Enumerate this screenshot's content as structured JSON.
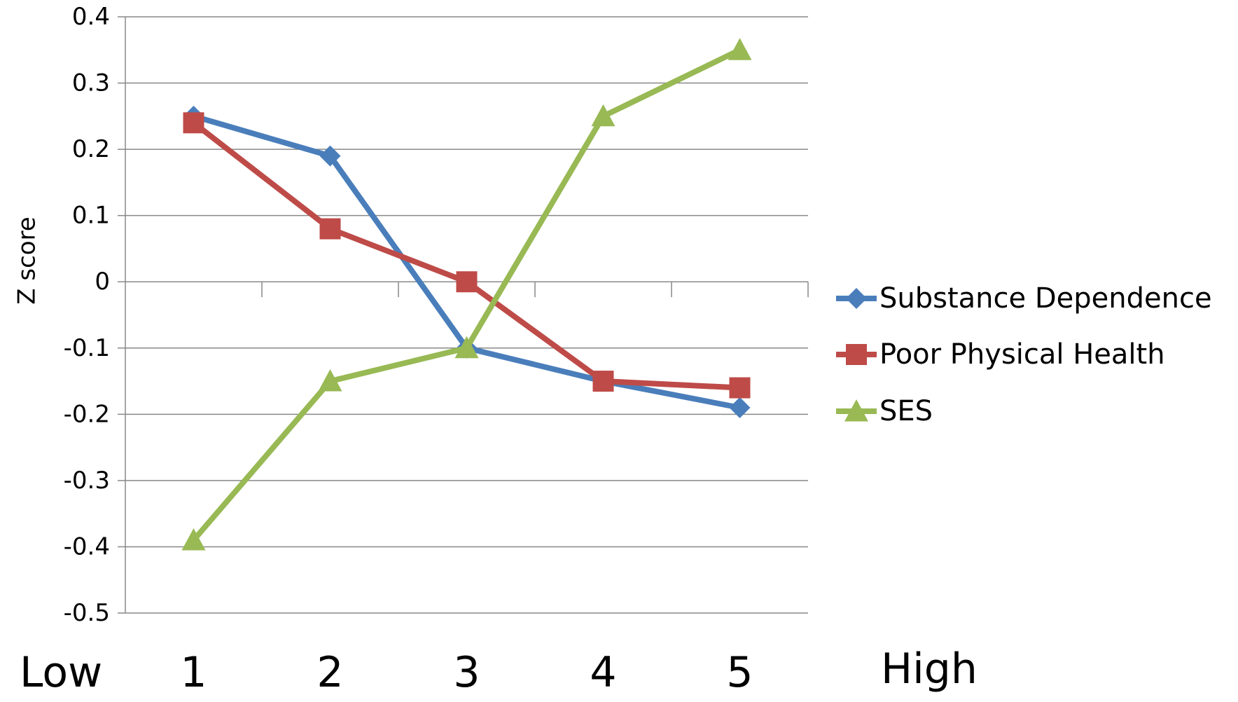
{
  "chart_data": {
    "type": "line",
    "title": "",
    "xlabel": "",
    "ylabel": "Z score",
    "ylim": [
      -0.5,
      0.4
    ],
    "yticks": [
      "0.4",
      "0.3",
      "0.2",
      "0.1",
      "0",
      "-0.1",
      "-0.2",
      "-0.3",
      "-0.4",
      "-0.5"
    ],
    "categories": [
      "1",
      "2",
      "3",
      "4",
      "5"
    ],
    "x_end_labels": {
      "low": "Low",
      "high": "High"
    },
    "grid": true,
    "legend_position": "right",
    "series": [
      {
        "name": "Substance Dependence",
        "color": "#4a7ebb",
        "marker": "diamond",
        "values": [
          0.25,
          0.19,
          -0.1,
          -0.15,
          -0.19
        ]
      },
      {
        "name": "Poor Physical Health",
        "color": "#be4b48",
        "marker": "square",
        "values": [
          0.24,
          0.08,
          0.0,
          -0.15,
          -0.16
        ]
      },
      {
        "name": "SES",
        "color": "#98b954",
        "marker": "triangle",
        "values": [
          -0.39,
          -0.15,
          -0.1,
          0.25,
          0.35
        ]
      }
    ]
  }
}
